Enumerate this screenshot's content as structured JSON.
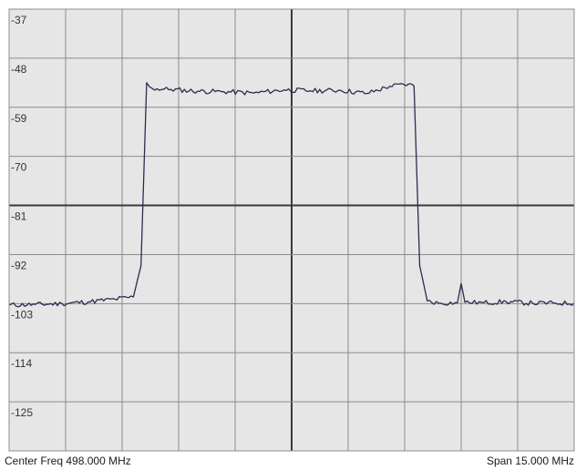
{
  "footer": {
    "center_freq": "Center Freq 498.000 MHz",
    "span": "Span 15.000 MHz"
  },
  "colors": {
    "plot_background": "#e6e6e6",
    "grid": "#8c8c8c",
    "center_grid": "#3a3a3a",
    "trace": "#2b2d4f",
    "label_text": "#333333"
  },
  "chart_data": {
    "type": "line",
    "title": "",
    "xlabel": "",
    "ylabel": "",
    "x_unit": "MHz",
    "center_freq_mhz": 498.0,
    "span_mhz": 15.0,
    "xlim": [
      490.5,
      505.5
    ],
    "ylim": [
      -136,
      -37
    ],
    "y_ticks": [
      -37,
      -48,
      -59,
      -70,
      -81,
      -92,
      -103,
      -114,
      -125
    ],
    "x_divisions": 10,
    "y_divisions": 9,
    "grid": true,
    "legend": "none",
    "series": [
      {
        "x": [
          490.5,
          491.2,
          491.9,
          492.6,
          493.3,
          493.8,
          494.0,
          494.15,
          494.3,
          494.8,
          495.5,
          496.2,
          497.0,
          497.8,
          498.5,
          499.3,
          500.0,
          500.6,
          501.1,
          501.25,
          501.4,
          501.6,
          501.9,
          502.4,
          502.5,
          502.6,
          503.1,
          503.7,
          504.4,
          505.0,
          505.5
        ],
        "y": [
          -103.3,
          -103.2,
          -103.0,
          -102.6,
          -102.0,
          -101.5,
          -94.5,
          -53.5,
          -54.8,
          -55.0,
          -55.4,
          -55.5,
          -55.8,
          -55.1,
          -55.3,
          -55.2,
          -55.9,
          -54.3,
          -53.8,
          -54.2,
          -94.5,
          -102.4,
          -102.9,
          -102.8,
          -98.5,
          -102.7,
          -102.8,
          -102.6,
          -102.9,
          -102.9,
          -102.9
        ]
      }
    ]
  }
}
